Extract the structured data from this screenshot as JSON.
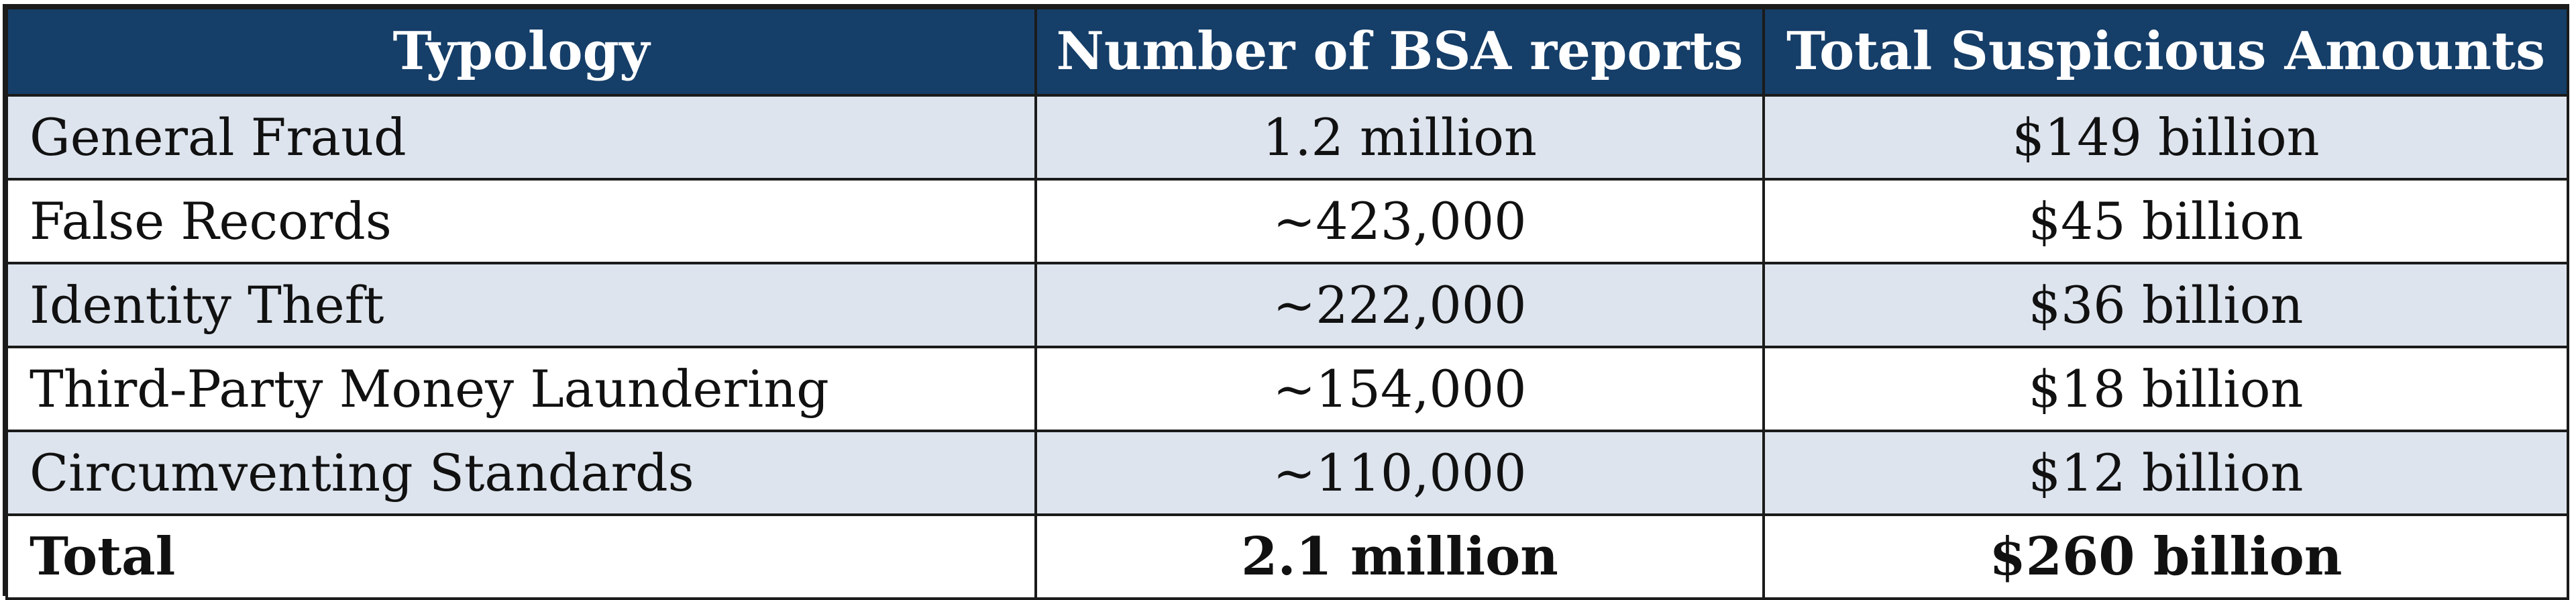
{
  "table": {
    "headers": [
      "Typology",
      "Number of BSA reports",
      "Total Suspicious Amounts"
    ],
    "rows": [
      {
        "typology": "General Fraud",
        "reports": "1.2 million",
        "amount": "$149 billion"
      },
      {
        "typology": "False Records",
        "reports": "~423,000",
        "amount": "$45 billion"
      },
      {
        "typology": "Identity Theft",
        "reports": "~222,000",
        "amount": "$36 billion"
      },
      {
        "typology": "Third-Party Money Laundering",
        "reports": "~154,000",
        "amount": "$18 billion"
      },
      {
        "typology": "Circumventing Standards",
        "reports": "~110,000",
        "amount": "$12 billion"
      }
    ],
    "total": {
      "typology": "Total",
      "reports": "2.1 million",
      "amount": "$260 billion"
    }
  },
  "colors": {
    "header_background": "#153e68",
    "header_text": "#ffffff",
    "shaded_row": "#dde4ee",
    "border": "#1b1b1b"
  }
}
